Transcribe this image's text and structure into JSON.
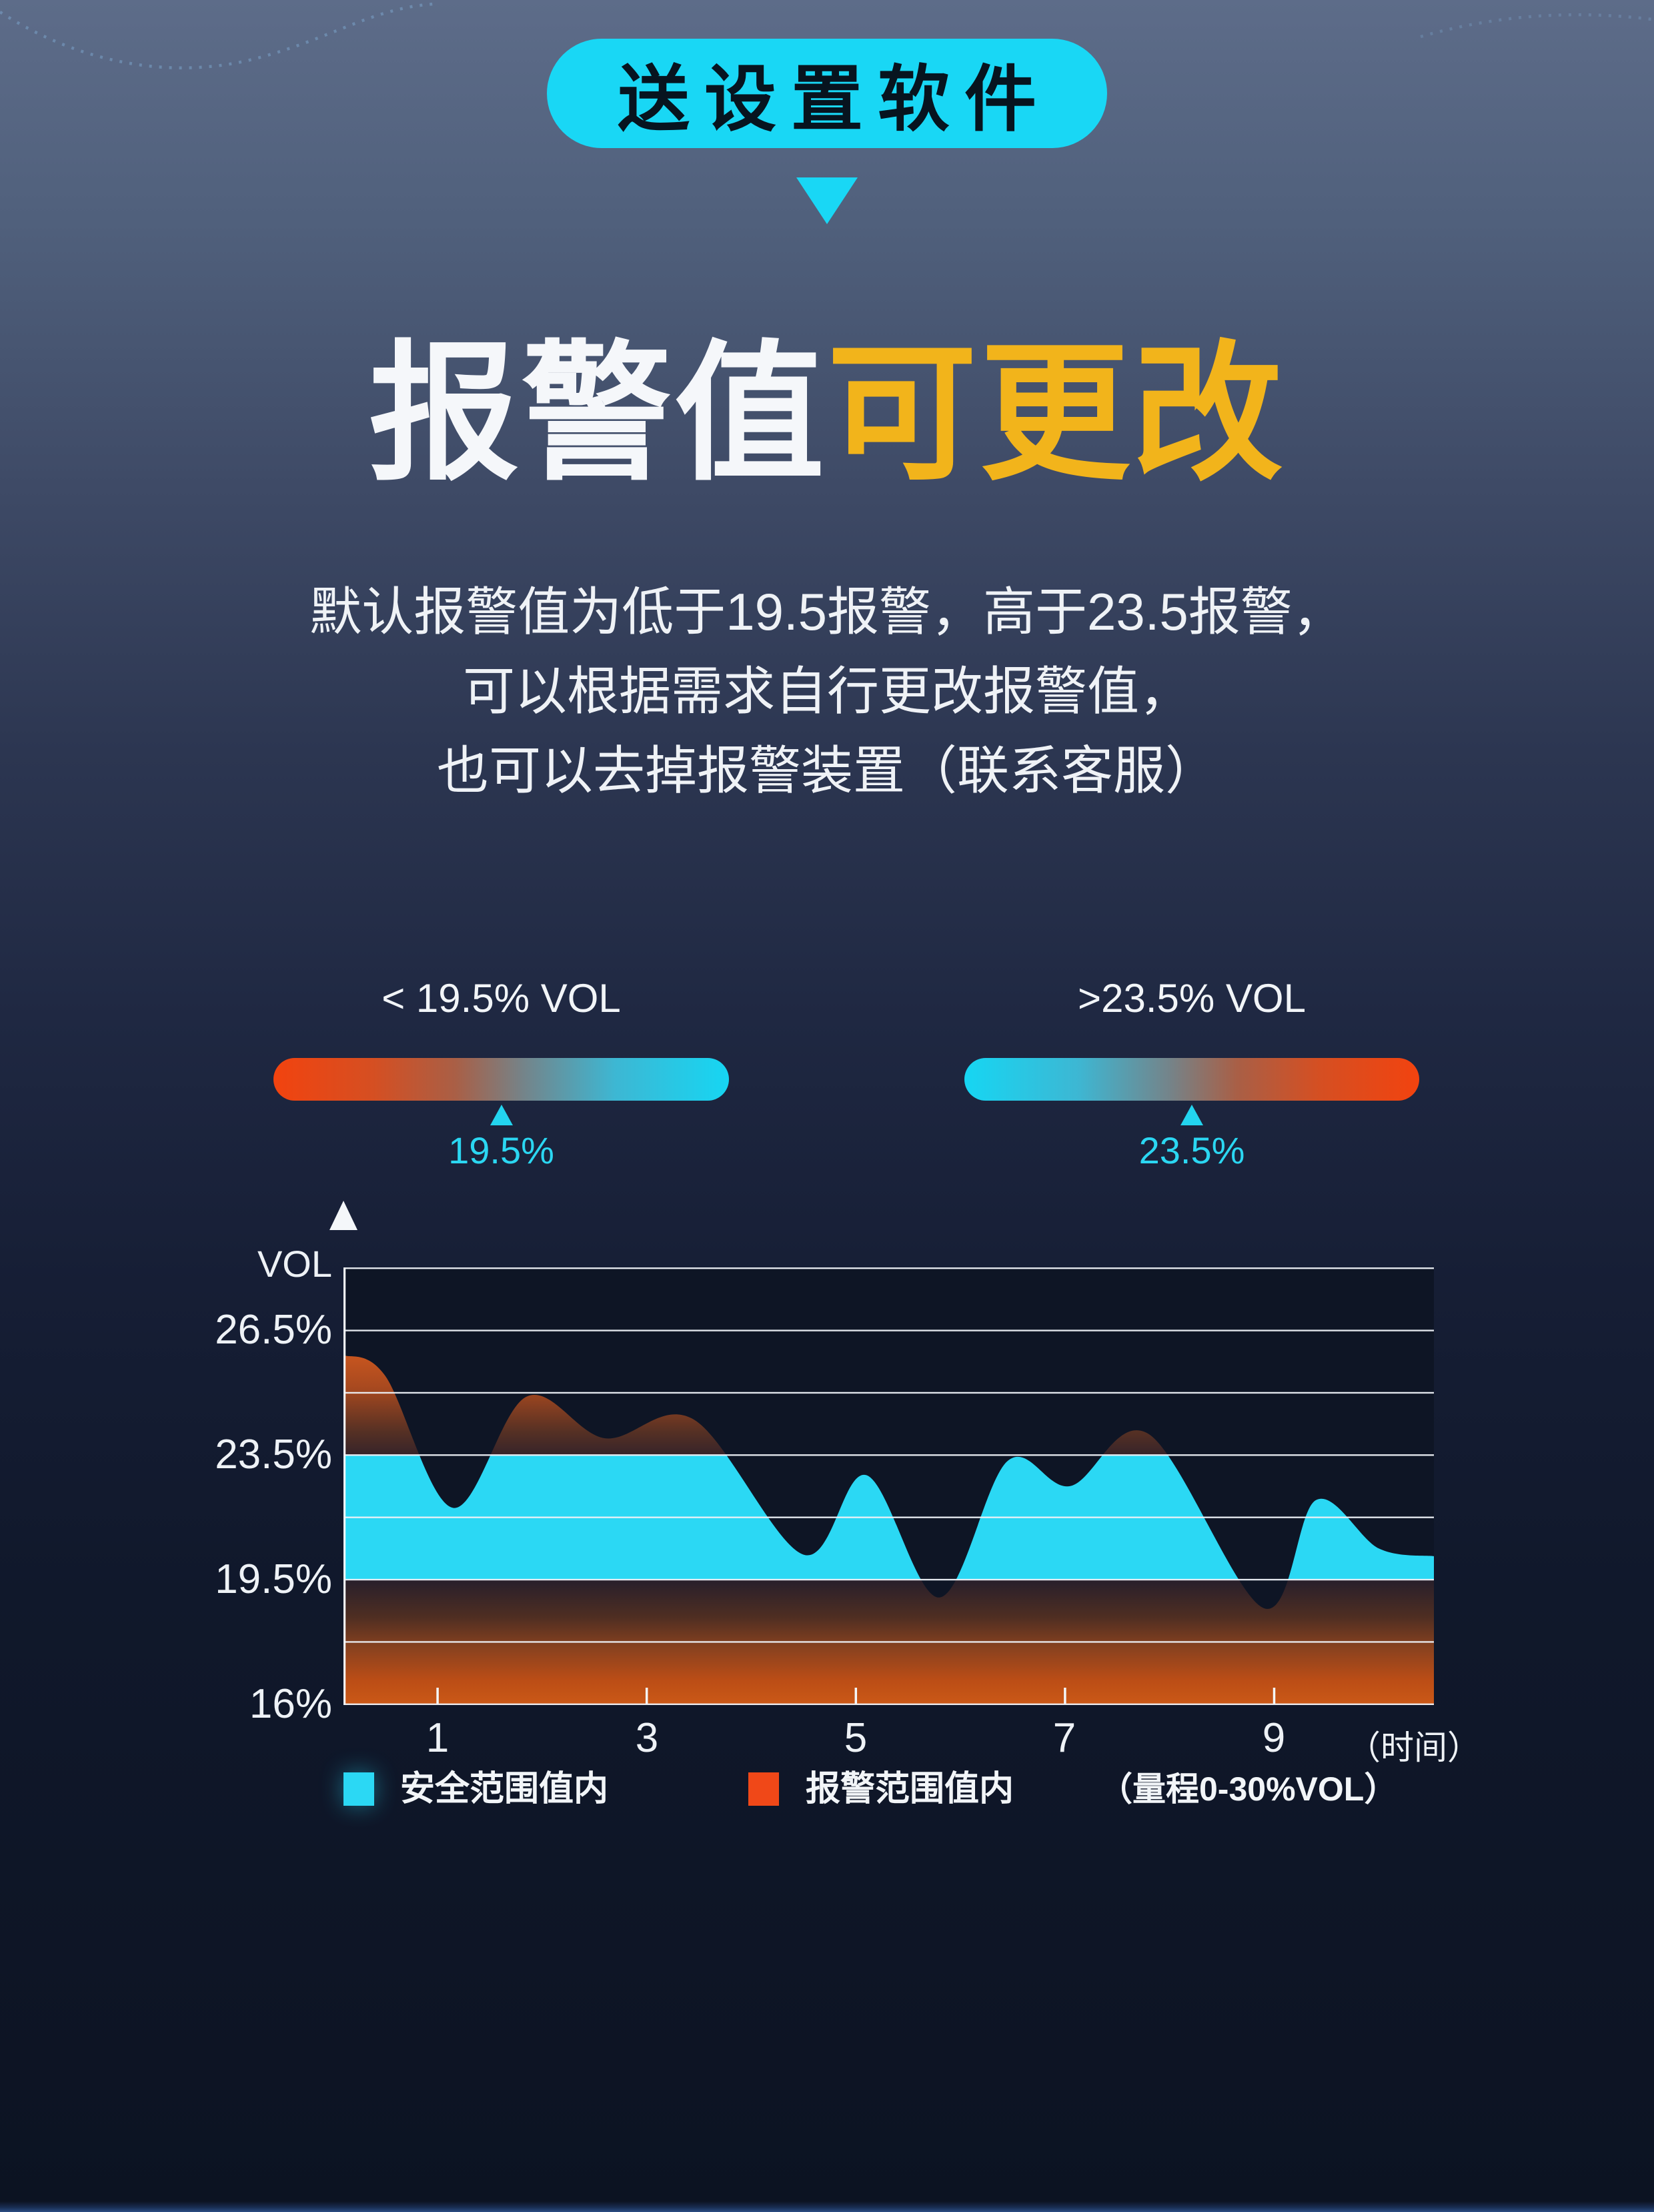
{
  "badge": {
    "label": "送设置软件"
  },
  "title": {
    "part_white": "报警值",
    "part_yellow": "可更改",
    "yellow_color": "#f2b41b"
  },
  "description": {
    "line1": "默认报警值为低于19.5报警，高于23.5报警，",
    "line2": "可以根据需求自行更改报警值，",
    "line3": "也可以去掉报警装置（联系客服）"
  },
  "threshold_bars": {
    "low": {
      "heading": "< 19.5% VOL",
      "marker_value": "19.5%",
      "gradient": "red-to-cyan"
    },
    "high": {
      "heading": ">23.5% VOL",
      "marker_value": "23.5%",
      "gradient": "cyan-to-red"
    }
  },
  "colors": {
    "accent_cyan": "#19d7f5",
    "accent_yellow": "#f2b41b",
    "alarm_orange": "#f04818",
    "safe_cyan": "#2bd8f4",
    "background_top": "#5d6c89",
    "background_bottom": "#0c1322"
  },
  "chart_data": {
    "type": "area",
    "ylabel": "VOL",
    "x_axis_note": "（时间）",
    "x_tick_labels": [
      "1",
      "3",
      "5",
      "7",
      "9"
    ],
    "x_tick_values": [
      1,
      3,
      5,
      7,
      9
    ],
    "y_tick_labels": [
      "26.5%",
      "23.5%",
      "19.5%",
      "16%"
    ],
    "y_tick_values": [
      26.5,
      23.5,
      19.5,
      16
    ],
    "xlim": [
      0.1,
      10.53
    ],
    "ylim": [
      16,
      28.5
    ],
    "alarm_threshold_low": 19.5,
    "alarm_threshold_high": 23.5,
    "grid": "8 evenly spaced horizontal white lines",
    "legend_position": "bottom",
    "x": [
      0.1,
      0.5,
      1.15,
      1.85,
      2.6,
      3.45,
      4.5,
      5.1,
      5.8,
      6.45,
      7.05,
      7.8,
      8.9,
      9.4,
      10.0,
      10.53
    ],
    "values": [
      25.9,
      25.4,
      21.8,
      24.9,
      23.9,
      24.35,
      20.3,
      22.85,
      19.0,
      23.3,
      22.5,
      24.0,
      18.7,
      22.05,
      20.5,
      20.25
    ],
    "legend": [
      {
        "label": "安全范围值内",
        "color": "#2bd8f4"
      },
      {
        "label": "报警范围值内",
        "color": "#f04818"
      }
    ],
    "range_note": "（量程0-30%VOL）"
  }
}
